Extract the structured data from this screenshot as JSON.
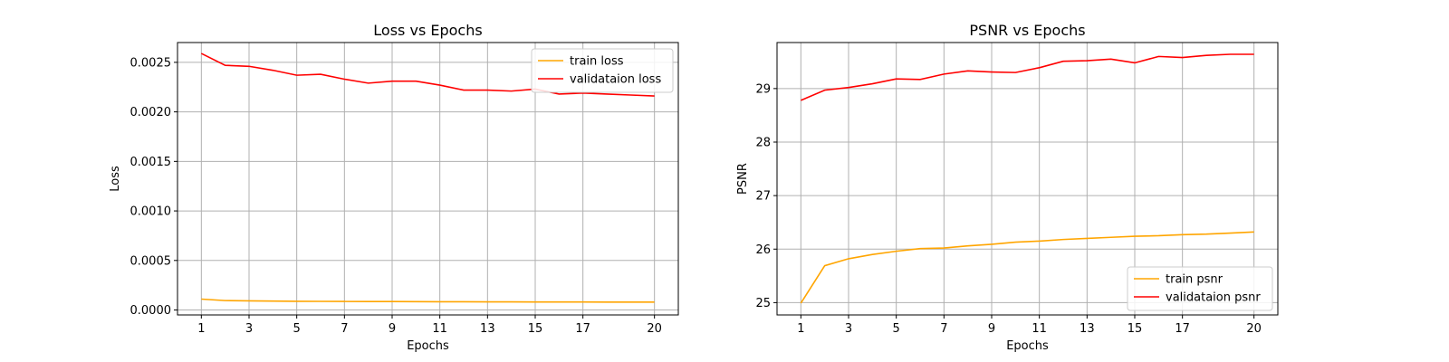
{
  "chart_data": [
    {
      "type": "line",
      "title": "Loss vs Epochs",
      "xlabel": "Epochs",
      "ylabel": "Loss",
      "xlim": [
        0,
        21
      ],
      "ylim": [
        -5e-05,
        0.0027
      ],
      "xticks": [
        "1",
        "3",
        "5",
        "7",
        "9",
        "11",
        "13",
        "15",
        "17",
        "20"
      ],
      "yticks": [
        "0.0000",
        "0.0005",
        "0.0010",
        "0.0015",
        "0.0020",
        "0.0025"
      ],
      "grid": true,
      "legend": "upper-right",
      "x": [
        1,
        2,
        3,
        4,
        5,
        6,
        7,
        8,
        9,
        10,
        11,
        12,
        13,
        14,
        15,
        16,
        17,
        18,
        19,
        20
      ],
      "series": [
        {
          "name": "train loss",
          "color": "#ffa500",
          "values": [
            0.00011,
            9.5e-05,
            9.2e-05,
            9e-05,
            8.8e-05,
            8.7e-05,
            8.6e-05,
            8.5e-05,
            8.5e-05,
            8.4e-05,
            8.3e-05,
            8.3e-05,
            8.2e-05,
            8.2e-05,
            8.1e-05,
            8.1e-05,
            8.1e-05,
            8e-05,
            8e-05,
            8e-05
          ]
        },
        {
          "name": "validataion loss",
          "color": "#ff0000",
          "values": [
            0.00259,
            0.00247,
            0.00246,
            0.00242,
            0.00237,
            0.00238,
            0.00233,
            0.00229,
            0.00231,
            0.00231,
            0.00227,
            0.00222,
            0.00222,
            0.00221,
            0.00223,
            0.00218,
            0.00219,
            0.00218,
            0.00217,
            0.00216
          ]
        }
      ]
    },
    {
      "type": "line",
      "title": "PSNR vs Epochs",
      "xlabel": "Epochs",
      "ylabel": "PSNR",
      "xlim": [
        0,
        21
      ],
      "ylim": [
        24.77,
        29.86
      ],
      "xticks": [
        "1",
        "3",
        "5",
        "7",
        "9",
        "11",
        "13",
        "15",
        "17",
        "20"
      ],
      "yticks": [
        "25",
        "26",
        "27",
        "28",
        "29"
      ],
      "grid": true,
      "legend": "lower-right",
      "x": [
        1,
        2,
        3,
        4,
        5,
        6,
        7,
        8,
        9,
        10,
        11,
        12,
        13,
        14,
        15,
        16,
        17,
        18,
        19,
        20
      ],
      "series": [
        {
          "name": "train psnr",
          "color": "#ffa500",
          "values": [
            24.99,
            25.69,
            25.82,
            25.9,
            25.96,
            26.01,
            26.02,
            26.06,
            26.09,
            26.13,
            26.15,
            26.18,
            26.2,
            26.22,
            26.24,
            26.25,
            26.27,
            26.28,
            26.3,
            26.32
          ]
        },
        {
          "name": "validataion psnr",
          "color": "#ff0000",
          "values": [
            28.78,
            28.97,
            29.02,
            29.09,
            29.18,
            29.17,
            29.27,
            29.33,
            29.31,
            29.3,
            29.39,
            29.51,
            29.52,
            29.55,
            29.48,
            29.6,
            29.58,
            29.62,
            29.64,
            29.64
          ]
        }
      ]
    }
  ]
}
